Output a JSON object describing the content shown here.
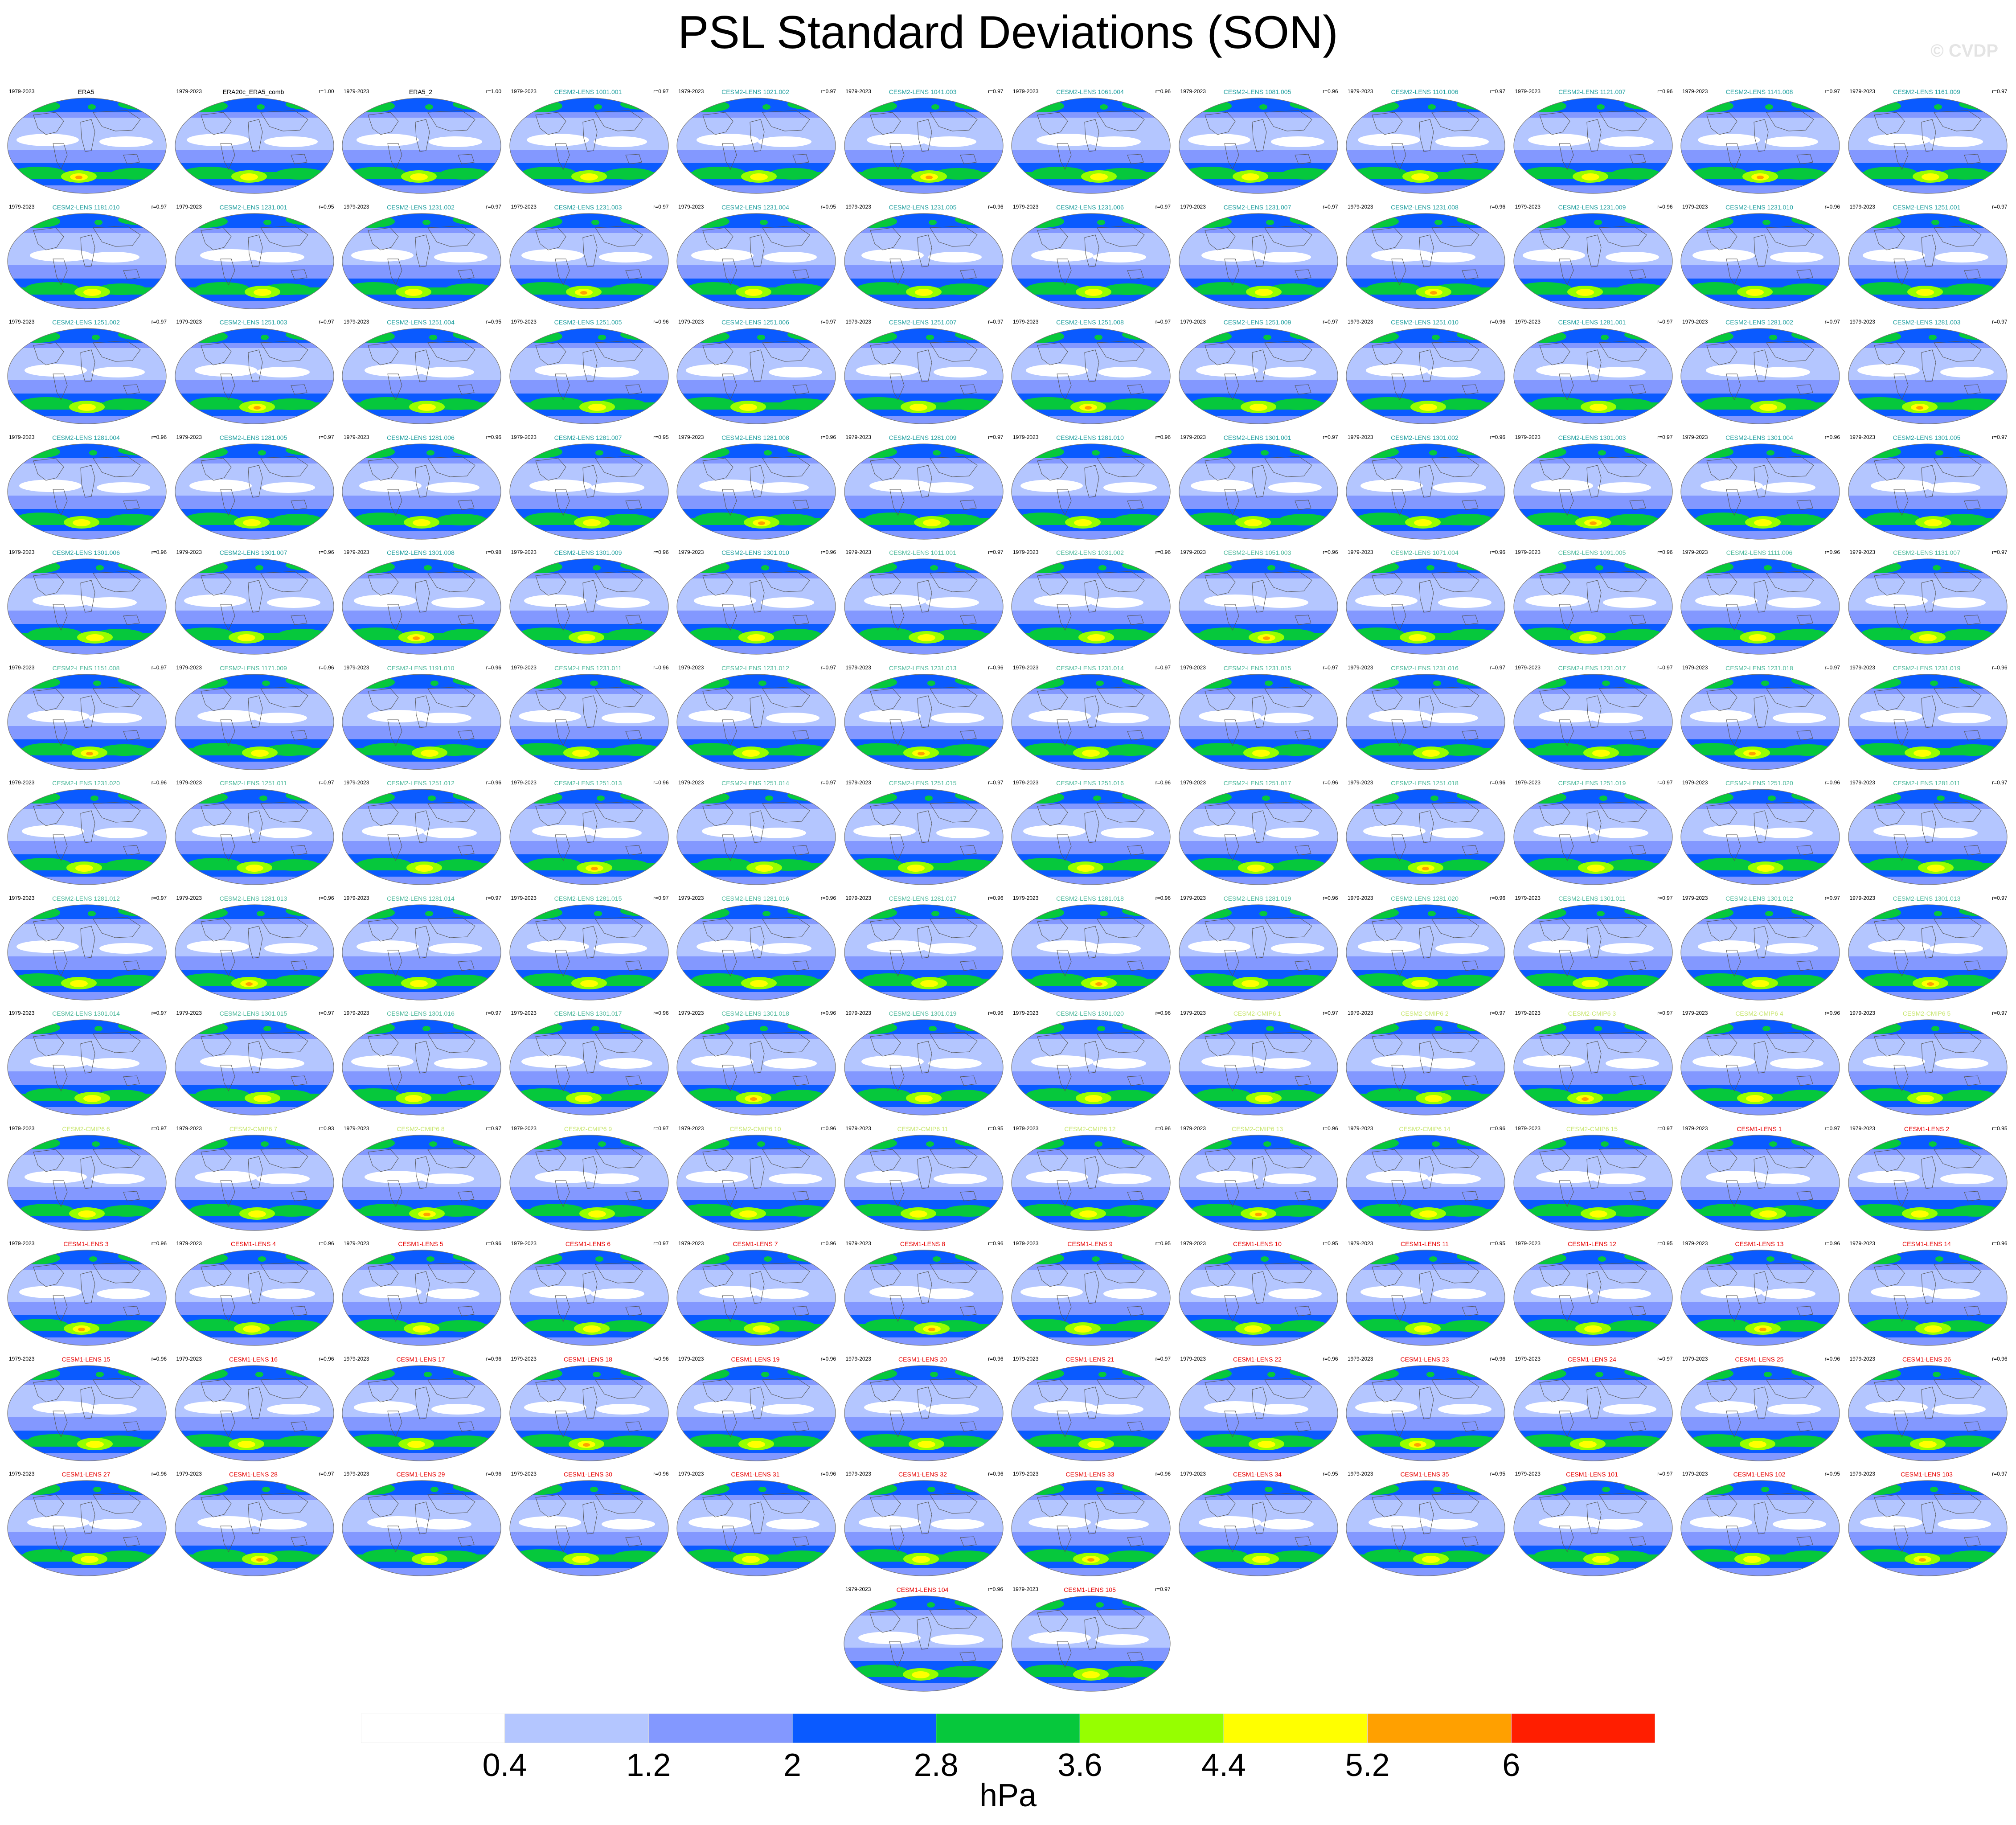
{
  "title": "PSL Standard Deviations (SON)",
  "watermark": "© CVDP",
  "chart_data": {
    "type": "heatmap",
    "title": "PSL Standard Deviations (SON)",
    "period": "1979-2023",
    "units": "hPa",
    "colorbar": {
      "levels": [
        0.4,
        1.2,
        2,
        2.8,
        3.6,
        4.4,
        5.2,
        6
      ],
      "colors": [
        "#ffffff",
        "#b4c6ff",
        "#8398ff",
        "#0a5aff",
        "#06c83c",
        "#96ff00",
        "#ffff00",
        "#ffa000",
        "#ff1e00"
      ]
    },
    "panels": [
      {
        "name": "ERA5",
        "r": "",
        "color": "#000000"
      },
      {
        "name": "ERA20c_ERA5_comb",
        "r": "r=1.00",
        "color": "#000000"
      },
      {
        "name": "ERA5_2",
        "r": "r=1.00",
        "color": "#000000"
      },
      {
        "name": "CESM2-LENS 1001.001",
        "r": "r=0.97",
        "color": "#1a9c9c"
      },
      {
        "name": "CESM2-LENS 1021.002",
        "r": "r=0.97",
        "color": "#1a9c9c"
      },
      {
        "name": "CESM2-LENS 1041.003",
        "r": "r=0.97",
        "color": "#1a9c9c"
      },
      {
        "name": "CESM2-LENS 1061.004",
        "r": "r=0.96",
        "color": "#1a9c9c"
      },
      {
        "name": "CESM2-LENS 1081.005",
        "r": "r=0.96",
        "color": "#1a9c9c"
      },
      {
        "name": "CESM2-LENS 1101.006",
        "r": "r=0.97",
        "color": "#1a9c9c"
      },
      {
        "name": "CESM2-LENS 1121.007",
        "r": "r=0.96",
        "color": "#1a9c9c"
      },
      {
        "name": "CESM2-LENS 1141.008",
        "r": "r=0.97",
        "color": "#1a9c9c"
      },
      {
        "name": "CESM2-LENS 1161.009",
        "r": "r=0.97",
        "color": "#1a9c9c"
      },
      {
        "name": "CESM2-LENS 1181.010",
        "r": "r=0.97",
        "color": "#1a9c9c"
      },
      {
        "name": "CESM2-LENS 1231.001",
        "r": "r=0.95",
        "color": "#1a9c9c"
      },
      {
        "name": "CESM2-LENS 1231.002",
        "r": "r=0.97",
        "color": "#1a9c9c"
      },
      {
        "name": "CESM2-LENS 1231.003",
        "r": "r=0.97",
        "color": "#1a9c9c"
      },
      {
        "name": "CESM2-LENS 1231.004",
        "r": "r=0.95",
        "color": "#1a9c9c"
      },
      {
        "name": "CESM2-LENS 1231.005",
        "r": "r=0.96",
        "color": "#1a9c9c"
      },
      {
        "name": "CESM2-LENS 1231.006",
        "r": "r=0.97",
        "color": "#1a9c9c"
      },
      {
        "name": "CESM2-LENS 1231.007",
        "r": "r=0.97",
        "color": "#1a9c9c"
      },
      {
        "name": "CESM2-LENS 1231.008",
        "r": "r=0.96",
        "color": "#1a9c9c"
      },
      {
        "name": "CESM2-LENS 1231.009",
        "r": "r=0.96",
        "color": "#1a9c9c"
      },
      {
        "name": "CESM2-LENS 1231.010",
        "r": "r=0.96",
        "color": "#1a9c9c"
      },
      {
        "name": "CESM2-LENS 1251.001",
        "r": "r=0.97",
        "color": "#1a9c9c"
      },
      {
        "name": "CESM2-LENS 1251.002",
        "r": "r=0.97",
        "color": "#1a9c9c"
      },
      {
        "name": "CESM2-LENS 1251.003",
        "r": "r=0.97",
        "color": "#1a9c9c"
      },
      {
        "name": "CESM2-LENS 1251.004",
        "r": "r=0.95",
        "color": "#1a9c9c"
      },
      {
        "name": "CESM2-LENS 1251.005",
        "r": "r=0.96",
        "color": "#1a9c9c"
      },
      {
        "name": "CESM2-LENS 1251.006",
        "r": "r=0.97",
        "color": "#1a9c9c"
      },
      {
        "name": "CESM2-LENS 1251.007",
        "r": "r=0.97",
        "color": "#1a9c9c"
      },
      {
        "name": "CESM2-LENS 1251.008",
        "r": "r=0.97",
        "color": "#1a9c9c"
      },
      {
        "name": "CESM2-LENS 1251.009",
        "r": "r=0.97",
        "color": "#1a9c9c"
      },
      {
        "name": "CESM2-LENS 1251.010",
        "r": "r=0.96",
        "color": "#1a9c9c"
      },
      {
        "name": "CESM2-LENS 1281.001",
        "r": "r=0.97",
        "color": "#1a9c9c"
      },
      {
        "name": "CESM2-LENS 1281.002",
        "r": "r=0.97",
        "color": "#1a9c9c"
      },
      {
        "name": "CESM2-LENS 1281.003",
        "r": "r=0.97",
        "color": "#1a9c9c"
      },
      {
        "name": "CESM2-LENS 1281.004",
        "r": "r=0.96",
        "color": "#1a9c9c"
      },
      {
        "name": "CESM2-LENS 1281.005",
        "r": "r=0.97",
        "color": "#1a9c9c"
      },
      {
        "name": "CESM2-LENS 1281.006",
        "r": "r=0.96",
        "color": "#1a9c9c"
      },
      {
        "name": "CESM2-LENS 1281.007",
        "r": "r=0.95",
        "color": "#1a9c9c"
      },
      {
        "name": "CESM2-LENS 1281.008",
        "r": "r=0.96",
        "color": "#1a9c9c"
      },
      {
        "name": "CESM2-LENS 1281.009",
        "r": "r=0.97",
        "color": "#1a9c9c"
      },
      {
        "name": "CESM2-LENS 1281.010",
        "r": "r=0.96",
        "color": "#1a9c9c"
      },
      {
        "name": "CESM2-LENS 1301.001",
        "r": "r=0.97",
        "color": "#1a9c9c"
      },
      {
        "name": "CESM2-LENS 1301.002",
        "r": "r=0.96",
        "color": "#1a9c9c"
      },
      {
        "name": "CESM2-LENS 1301.003",
        "r": "r=0.97",
        "color": "#1a9c9c"
      },
      {
        "name": "CESM2-LENS 1301.004",
        "r": "r=0.96",
        "color": "#1a9c9c"
      },
      {
        "name": "CESM2-LENS 1301.005",
        "r": "r=0.97",
        "color": "#1a9c9c"
      },
      {
        "name": "CESM2-LENS 1301.006",
        "r": "r=0.96",
        "color": "#1a9c9c"
      },
      {
        "name": "CESM2-LENS 1301.007",
        "r": "r=0.96",
        "color": "#1a9c9c"
      },
      {
        "name": "CESM2-LENS 1301.008",
        "r": "r=0.98",
        "color": "#1a9c9c"
      },
      {
        "name": "CESM2-LENS 1301.009",
        "r": "r=0.96",
        "color": "#1a9c9c"
      },
      {
        "name": "CESM2-LENS 1301.010",
        "r": "r=0.96",
        "color": "#1a9c9c"
      },
      {
        "name": "CESM2-LENS 1011.001",
        "r": "r=0.97",
        "color": "#4cb89a"
      },
      {
        "name": "CESM2-LENS 1031.002",
        "r": "r=0.96",
        "color": "#4cb89a"
      },
      {
        "name": "CESM2-LENS 1051.003",
        "r": "r=0.96",
        "color": "#4cb89a"
      },
      {
        "name": "CESM2-LENS 1071.004",
        "r": "r=0.96",
        "color": "#4cb89a"
      },
      {
        "name": "CESM2-LENS 1091.005",
        "r": "r=0.96",
        "color": "#4cb89a"
      },
      {
        "name": "CESM2-LENS 1111.006",
        "r": "r=0.96",
        "color": "#4cb89a"
      },
      {
        "name": "CESM2-LENS 1131.007",
        "r": "r=0.97",
        "color": "#4cb89a"
      },
      {
        "name": "CESM2-LENS 1151.008",
        "r": "r=0.97",
        "color": "#4cb89a"
      },
      {
        "name": "CESM2-LENS 1171.009",
        "r": "r=0.96",
        "color": "#4cb89a"
      },
      {
        "name": "CESM2-LENS 1191.010",
        "r": "r=0.96",
        "color": "#4cb89a"
      },
      {
        "name": "CESM2-LENS 1231.011",
        "r": "r=0.96",
        "color": "#4cb89a"
      },
      {
        "name": "CESM2-LENS 1231.012",
        "r": "r=0.97",
        "color": "#4cb89a"
      },
      {
        "name": "CESM2-LENS 1231.013",
        "r": "r=0.96",
        "color": "#4cb89a"
      },
      {
        "name": "CESM2-LENS 1231.014",
        "r": "r=0.97",
        "color": "#4cb89a"
      },
      {
        "name": "CESM2-LENS 1231.015",
        "r": "r=0.97",
        "color": "#4cb89a"
      },
      {
        "name": "CESM2-LENS 1231.016",
        "r": "r=0.97",
        "color": "#4cb89a"
      },
      {
        "name": "CESM2-LENS 1231.017",
        "r": "r=0.97",
        "color": "#4cb89a"
      },
      {
        "name": "CESM2-LENS 1231.018",
        "r": "r=0.97",
        "color": "#4cb89a"
      },
      {
        "name": "CESM2-LENS 1231.019",
        "r": "r=0.96",
        "color": "#4cb89a"
      },
      {
        "name": "CESM2-LENS 1231.020",
        "r": "r=0.96",
        "color": "#4cb89a"
      },
      {
        "name": "CESM2-LENS 1251.011",
        "r": "r=0.97",
        "color": "#4cb89a"
      },
      {
        "name": "CESM2-LENS 1251.012",
        "r": "r=0.96",
        "color": "#4cb89a"
      },
      {
        "name": "CESM2-LENS 1251.013",
        "r": "r=0.96",
        "color": "#4cb89a"
      },
      {
        "name": "CESM2-LENS 1251.014",
        "r": "r=0.97",
        "color": "#4cb89a"
      },
      {
        "name": "CESM2-LENS 1251.015",
        "r": "r=0.97",
        "color": "#4cb89a"
      },
      {
        "name": "CESM2-LENS 1251.016",
        "r": "r=0.96",
        "color": "#4cb89a"
      },
      {
        "name": "CESM2-LENS 1251.017",
        "r": "r=0.96",
        "color": "#4cb89a"
      },
      {
        "name": "CESM2-LENS 1251.018",
        "r": "r=0.96",
        "color": "#4cb89a"
      },
      {
        "name": "CESM2-LENS 1251.019",
        "r": "r=0.97",
        "color": "#4cb89a"
      },
      {
        "name": "CESM2-LENS 1251.020",
        "r": "r=0.96",
        "color": "#4cb89a"
      },
      {
        "name": "CESM2-LENS 1281.011",
        "r": "r=0.97",
        "color": "#4cb89a"
      },
      {
        "name": "CESM2-LENS 1281.012",
        "r": "r=0.97",
        "color": "#4cb89a"
      },
      {
        "name": "CESM2-LENS 1281.013",
        "r": "r=0.96",
        "color": "#4cb89a"
      },
      {
        "name": "CESM2-LENS 1281.014",
        "r": "r=0.97",
        "color": "#4cb89a"
      },
      {
        "name": "CESM2-LENS 1281.015",
        "r": "r=0.97",
        "color": "#4cb89a"
      },
      {
        "name": "CESM2-LENS 1281.016",
        "r": "r=0.96",
        "color": "#4cb89a"
      },
      {
        "name": "CESM2-LENS 1281.017",
        "r": "r=0.96",
        "color": "#4cb89a"
      },
      {
        "name": "CESM2-LENS 1281.018",
        "r": "r=0.96",
        "color": "#4cb89a"
      },
      {
        "name": "CESM2-LENS 1281.019",
        "r": "r=0.96",
        "color": "#4cb89a"
      },
      {
        "name": "CESM2-LENS 1281.020",
        "r": "r=0.96",
        "color": "#4cb89a"
      },
      {
        "name": "CESM2-LENS 1301.011",
        "r": "r=0.97",
        "color": "#4cb89a"
      },
      {
        "name": "CESM2-LENS 1301.012",
        "r": "r=0.97",
        "color": "#4cb89a"
      },
      {
        "name": "CESM2-LENS 1301.013",
        "r": "r=0.97",
        "color": "#4cb89a"
      },
      {
        "name": "CESM2-LENS 1301.014",
        "r": "r=0.97",
        "color": "#4cb89a"
      },
      {
        "name": "CESM2-LENS 1301.015",
        "r": "r=0.97",
        "color": "#4cb89a"
      },
      {
        "name": "CESM2-LENS 1301.016",
        "r": "r=0.97",
        "color": "#4cb89a"
      },
      {
        "name": "CESM2-LENS 1301.017",
        "r": "r=0.96",
        "color": "#4cb89a"
      },
      {
        "name": "CESM2-LENS 1301.018",
        "r": "r=0.96",
        "color": "#4cb89a"
      },
      {
        "name": "CESM2-LENS 1301.019",
        "r": "r=0.96",
        "color": "#4cb89a"
      },
      {
        "name": "CESM2-LENS 1301.020",
        "r": "r=0.96",
        "color": "#4cb89a"
      },
      {
        "name": "CESM2-CMIP6 1",
        "r": "r=0.97",
        "color": "#c8e66e"
      },
      {
        "name": "CESM2-CMIP6 2",
        "r": "r=0.97",
        "color": "#c8e66e"
      },
      {
        "name": "CESM2-CMIP6 3",
        "r": "r=0.97",
        "color": "#c8e66e"
      },
      {
        "name": "CESM2-CMIP6 4",
        "r": "r=0.96",
        "color": "#c8e66e"
      },
      {
        "name": "CESM2-CMIP6 5",
        "r": "r=0.97",
        "color": "#c8e66e"
      },
      {
        "name": "CESM2-CMIP6 6",
        "r": "r=0.97",
        "color": "#c8e66e"
      },
      {
        "name": "CESM2-CMIP6 7",
        "r": "r=0.93",
        "color": "#c8e66e"
      },
      {
        "name": "CESM2-CMIP6 8",
        "r": "r=0.97",
        "color": "#c8e66e"
      },
      {
        "name": "CESM2-CMIP6 9",
        "r": "r=0.97",
        "color": "#c8e66e"
      },
      {
        "name": "CESM2-CMIP6 10",
        "r": "r=0.96",
        "color": "#c8e66e"
      },
      {
        "name": "CESM2-CMIP6 11",
        "r": "r=0.95",
        "color": "#c8e66e"
      },
      {
        "name": "CESM2-CMIP6 12",
        "r": "r=0.96",
        "color": "#c8e66e"
      },
      {
        "name": "CESM2-CMIP6 13",
        "r": "r=0.96",
        "color": "#c8e66e"
      },
      {
        "name": "CESM2-CMIP6 14",
        "r": "r=0.96",
        "color": "#c8e66e"
      },
      {
        "name": "CESM2-CMIP6 15",
        "r": "r=0.97",
        "color": "#c8e66e"
      },
      {
        "name": "CESM1-LENS 1",
        "r": "r=0.97",
        "color": "#e60000"
      },
      {
        "name": "CESM1-LENS 2",
        "r": "r=0.95",
        "color": "#e60000"
      },
      {
        "name": "CESM1-LENS 3",
        "r": "r=0.96",
        "color": "#e60000"
      },
      {
        "name": "CESM1-LENS 4",
        "r": "r=0.96",
        "color": "#e60000"
      },
      {
        "name": "CESM1-LENS 5",
        "r": "r=0.96",
        "color": "#e60000"
      },
      {
        "name": "CESM1-LENS 6",
        "r": "r=0.97",
        "color": "#e60000"
      },
      {
        "name": "CESM1-LENS 7",
        "r": "r=0.96",
        "color": "#e60000"
      },
      {
        "name": "CESM1-LENS 8",
        "r": "r=0.96",
        "color": "#e60000"
      },
      {
        "name": "CESM1-LENS 9",
        "r": "r=0.95",
        "color": "#e60000"
      },
      {
        "name": "CESM1-LENS 10",
        "r": "r=0.95",
        "color": "#e60000"
      },
      {
        "name": "CESM1-LENS 11",
        "r": "r=0.95",
        "color": "#e60000"
      },
      {
        "name": "CESM1-LENS 12",
        "r": "r=0.95",
        "color": "#e60000"
      },
      {
        "name": "CESM1-LENS 13",
        "r": "r=0.96",
        "color": "#e60000"
      },
      {
        "name": "CESM1-LENS 14",
        "r": "r=0.96",
        "color": "#e60000"
      },
      {
        "name": "CESM1-LENS 15",
        "r": "r=0.96",
        "color": "#e60000"
      },
      {
        "name": "CESM1-LENS 16",
        "r": "r=0.96",
        "color": "#e60000"
      },
      {
        "name": "CESM1-LENS 17",
        "r": "r=0.96",
        "color": "#e60000"
      },
      {
        "name": "CESM1-LENS 18",
        "r": "r=0.96",
        "color": "#e60000"
      },
      {
        "name": "CESM1-LENS 19",
        "r": "r=0.96",
        "color": "#e60000"
      },
      {
        "name": "CESM1-LENS 20",
        "r": "r=0.96",
        "color": "#e60000"
      },
      {
        "name": "CESM1-LENS 21",
        "r": "r=0.97",
        "color": "#e60000"
      },
      {
        "name": "CESM1-LENS 22",
        "r": "r=0.96",
        "color": "#e60000"
      },
      {
        "name": "CESM1-LENS 23",
        "r": "r=0.96",
        "color": "#e60000"
      },
      {
        "name": "CESM1-LENS 24",
        "r": "r=0.97",
        "color": "#e60000"
      },
      {
        "name": "CESM1-LENS 25",
        "r": "r=0.96",
        "color": "#e60000"
      },
      {
        "name": "CESM1-LENS 26",
        "r": "r=0.96",
        "color": "#e60000"
      },
      {
        "name": "CESM1-LENS 27",
        "r": "r=0.96",
        "color": "#e60000"
      },
      {
        "name": "CESM1-LENS 28",
        "r": "r=0.97",
        "color": "#e60000"
      },
      {
        "name": "CESM1-LENS 29",
        "r": "r=0.96",
        "color": "#e60000"
      },
      {
        "name": "CESM1-LENS 30",
        "r": "r=0.96",
        "color": "#e60000"
      },
      {
        "name": "CESM1-LENS 31",
        "r": "r=0.96",
        "color": "#e60000"
      },
      {
        "name": "CESM1-LENS 32",
        "r": "r=0.96",
        "color": "#e60000"
      },
      {
        "name": "CESM1-LENS 33",
        "r": "r=0.96",
        "color": "#e60000"
      },
      {
        "name": "CESM1-LENS 34",
        "r": "r=0.95",
        "color": "#e60000"
      },
      {
        "name": "CESM1-LENS 35",
        "r": "r=0.95",
        "color": "#e60000"
      },
      {
        "name": "CESM1-LENS 101",
        "r": "r=0.97",
        "color": "#e60000"
      },
      {
        "name": "CESM1-LENS 102",
        "r": "r=0.95",
        "color": "#e60000"
      },
      {
        "name": "CESM1-LENS 103",
        "r": "r=0.97",
        "color": "#e60000"
      },
      {
        "name": "CESM1-LENS 104",
        "r": "r=0.96",
        "color": "#e60000"
      },
      {
        "name": "CESM1-LENS 105",
        "r": "r=0.97",
        "color": "#e60000"
      }
    ]
  }
}
